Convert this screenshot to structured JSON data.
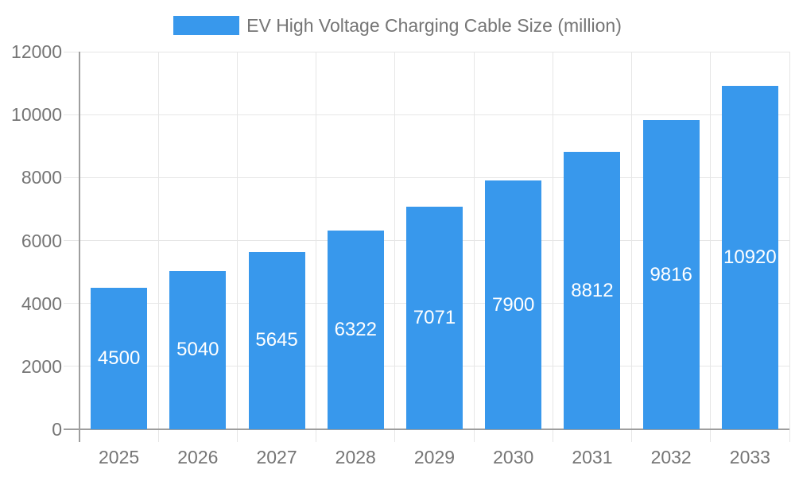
{
  "legend": {
    "label": "EV High Voltage Charging Cable Size (million)"
  },
  "chart_data": {
    "type": "bar",
    "title": "EV High Voltage Charging Cable Size (million)",
    "categories": [
      "2025",
      "2026",
      "2027",
      "2028",
      "2029",
      "2030",
      "2031",
      "2032",
      "2033"
    ],
    "values": [
      4500,
      5040,
      5645,
      6322,
      7071,
      7900,
      8812,
      9816,
      10920
    ],
    "value_labels": [
      "4500",
      "5040",
      "5645",
      "6322",
      "7071",
      "7900",
      "8812",
      "9816",
      "10920"
    ],
    "xlabel": "",
    "ylabel": "",
    "ylim": [
      0,
      12000
    ],
    "yticks": [
      0,
      2000,
      4000,
      6000,
      8000,
      10000,
      12000
    ],
    "grid": true,
    "legend_position": "top-center",
    "value_label_position": "center-of-bar",
    "colors": {
      "bar": "#3898EC",
      "grid": "#e6e6e6",
      "axis": "#9e9e9e",
      "tick_label": "#757575",
      "value_label": "#ffffff",
      "background": "#ffffff"
    }
  }
}
